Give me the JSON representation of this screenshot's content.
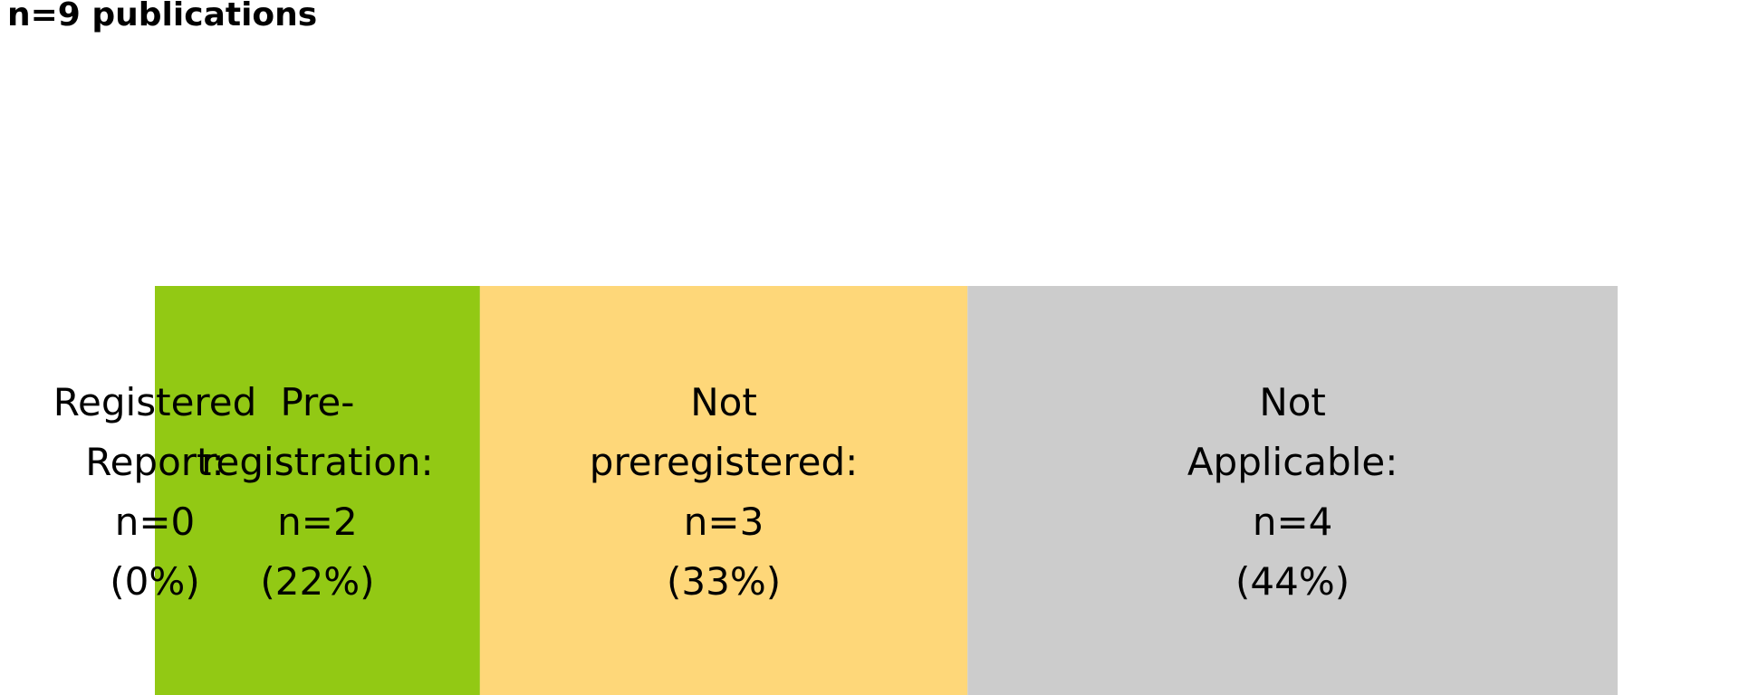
{
  "chart_data": {
    "type": "bar",
    "orientation": "horizontal-stacked",
    "title": "n=9 publications",
    "total": 9,
    "categories": [
      "Registered Report",
      "Pre-registration",
      "Not preregistered",
      "Not Applicable"
    ],
    "series": [
      {
        "name": "Registered Report",
        "value": 0,
        "percent": 0,
        "color": "#007f00",
        "label_lines": [
          "Registered",
          "Report:",
          "n=0",
          "(0%)"
        ]
      },
      {
        "name": "Pre-registration",
        "value": 2,
        "percent": 22,
        "color": "#92c914",
        "label_lines": [
          "Pre-",
          "registration:",
          "n=2",
          "(22%)"
        ]
      },
      {
        "name": "Not preregistered",
        "value": 3,
        "percent": 33,
        "color": "#fed779",
        "label_lines": [
          "Not",
          "preregistered:",
          "n=3",
          "(33%)"
        ]
      },
      {
        "name": "Not Applicable",
        "value": 4,
        "percent": 44,
        "color": "#cccccc",
        "label_lines": [
          "Not",
          "Applicable:",
          "n=4",
          "(44%)"
        ]
      }
    ],
    "xlim": [
      0,
      9
    ],
    "grid": false,
    "legend": "none"
  }
}
